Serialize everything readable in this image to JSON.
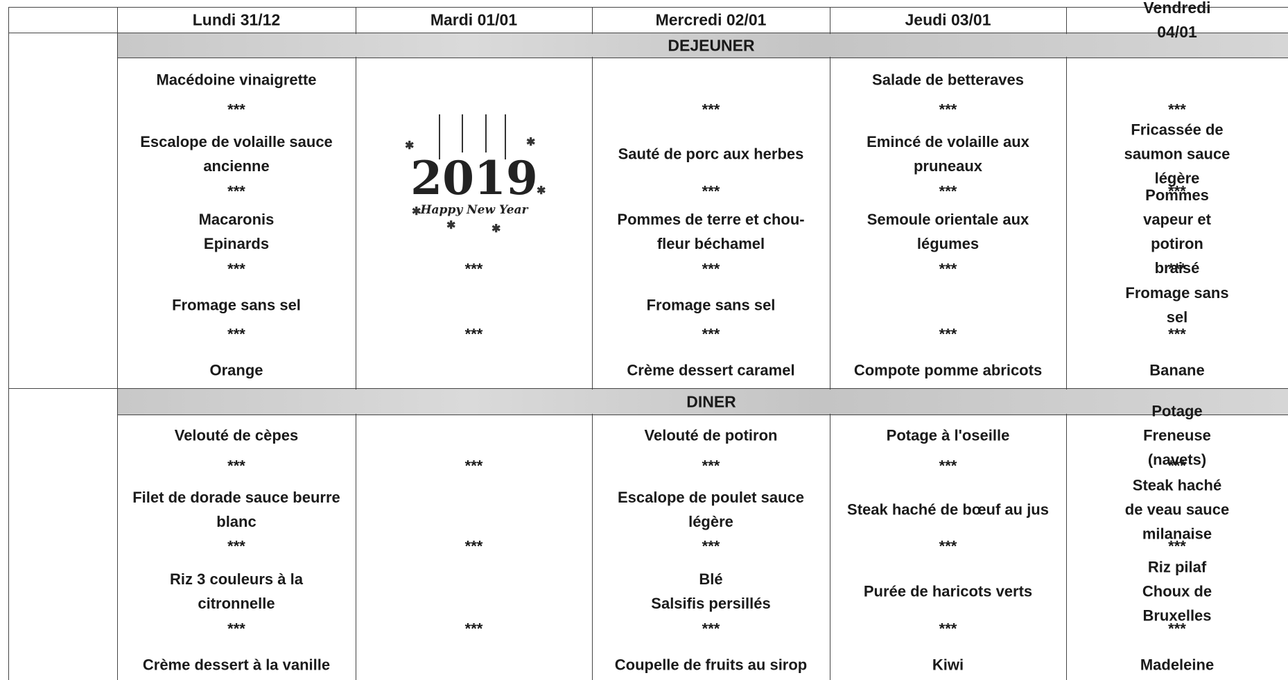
{
  "days": [
    "Lundi 31/12",
    "Mardi 01/01",
    "Mercredi 02/01",
    "Jeudi 03/01",
    "Vendredi 04/01"
  ],
  "greeting": {
    "year": "2019",
    "message": "Happy New Year"
  },
  "lunch": {
    "label": "DEJEUNER",
    "columns": [
      [
        "Macédoine vinaigrette",
        "***",
        "Escalope de volaille sauce\nancienne",
        "***",
        "Macaronis\nEpinards",
        "***",
        "Fromage sans sel",
        "***",
        "Orange"
      ],
      [
        null,
        null,
        null,
        null,
        null,
        "***",
        null,
        "***",
        null
      ],
      [
        null,
        "***",
        "Sauté de porc aux herbes",
        "***",
        "Pommes de terre et chou-\nfleur béchamel",
        "***",
        "Fromage sans sel",
        "***",
        "Crème dessert caramel"
      ],
      [
        "Salade de betteraves",
        "***",
        "Emincé de volaille aux\npruneaux",
        "***",
        "Semoule orientale aux\nlégumes",
        "***",
        null,
        "***",
        "Compote pomme abricots"
      ],
      [
        null,
        "***",
        "Fricassée de saumon sauce\nlégère",
        "***",
        "Pommes vapeur et potiron\nbraisé",
        "***",
        "Fromage sans sel",
        "***",
        "Banane"
      ]
    ]
  },
  "dinner": {
    "label": "DINER",
    "columns": [
      [
        "Velouté de cèpes",
        "***",
        "Filet de dorade sauce beurre\nblanc",
        "***",
        "Riz 3 couleurs  à la\ncitronnelle",
        "***",
        "Crème dessert à la vanille"
      ],
      [
        null,
        "***",
        null,
        "***",
        null,
        "***",
        null
      ],
      [
        "Velouté de potiron",
        "***",
        "Escalope de poulet sauce\nlégère",
        "***",
        "Blé\nSalsifis persillés",
        "***",
        "Coupelle de fruits au sirop"
      ],
      [
        "Potage à l'oseille",
        "***",
        "Steak haché de bœuf  au jus",
        "***",
        "Purée de haricots verts",
        "***",
        "Kiwi"
      ],
      [
        "Potage Freneuse (navets)",
        "***",
        "Steak haché de veau sauce\nmilanaise",
        "***",
        "Riz pilaf\nChoux de Bruxelles",
        "***",
        "Madeleine"
      ]
    ]
  }
}
